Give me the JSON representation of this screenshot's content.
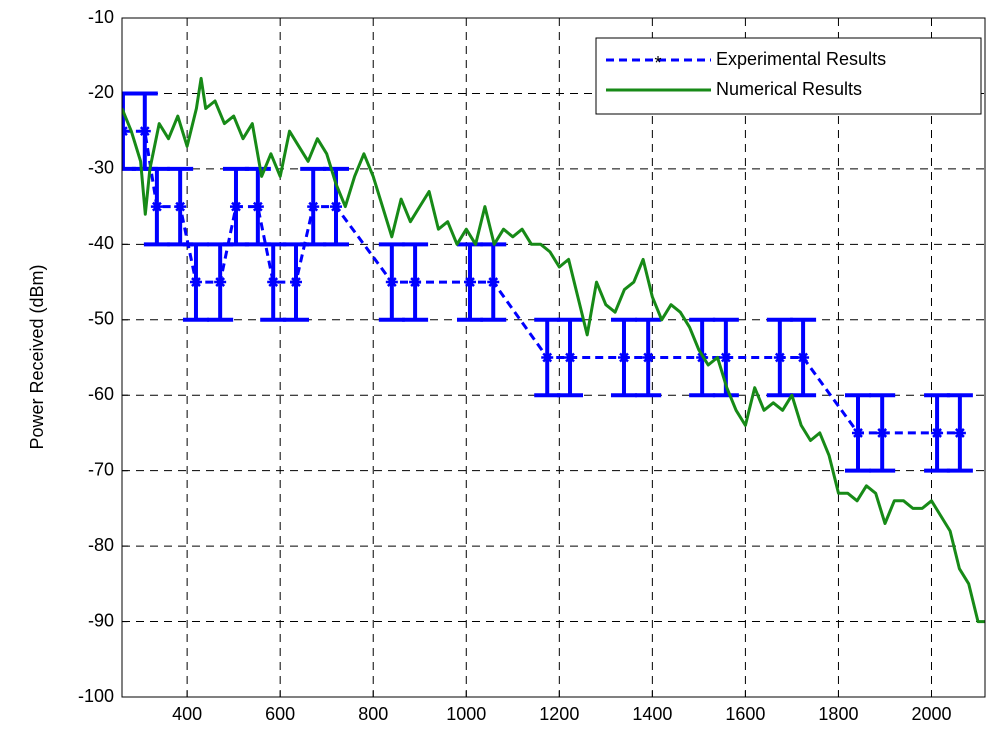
{
  "chart_data": {
    "type": "line",
    "y_label": "Power Received (dBm)",
    "xlim": [
      260,
      2115
    ],
    "xticks": [
      400,
      600,
      800,
      1000,
      1200,
      1400,
      1600,
      1800,
      2000
    ],
    "ylim": [
      -100,
      -10
    ],
    "yticks": [
      -100,
      -90,
      -80,
      -70,
      -60,
      -50,
      -40,
      -30,
      -20,
      -10
    ],
    "grid": true,
    "legend": "upper right",
    "series": [
      {
        "name": "Experimental Results",
        "color": "#0000ff",
        "style": "dashed",
        "marker": "*",
        "x": [
          262,
          309,
          335,
          385,
          419,
          471,
          505,
          552,
          585,
          634,
          671,
          720,
          840,
          890,
          1008,
          1058,
          1174,
          1223,
          1339,
          1391,
          1507,
          1558,
          1674,
          1724,
          1842,
          1894,
          2012,
          2061
        ],
        "values": [
          -25,
          -25,
          -35,
          -35,
          -45,
          -45,
          -35,
          -35,
          -45,
          -45,
          -35,
          -35,
          -45,
          -45,
          -45,
          -45,
          -55,
          -55,
          -55,
          -55,
          -55,
          -55,
          -55,
          -55,
          -65,
          -65,
          -65,
          -65
        ],
        "errors": [
          5,
          5,
          5,
          5,
          5,
          5,
          5,
          5,
          5,
          5,
          5,
          5,
          5,
          5,
          5,
          5,
          5,
          5,
          5,
          5,
          5,
          5,
          5,
          5,
          5,
          5,
          5,
          5
        ]
      },
      {
        "name": "Numerical Results",
        "color": "#178a17",
        "style": "solid",
        "x": [
          260,
          280,
          300,
          310,
          320,
          340,
          360,
          380,
          400,
          420,
          430,
          440,
          460,
          480,
          500,
          520,
          540,
          560,
          580,
          600,
          620,
          640,
          660,
          680,
          700,
          720,
          740,
          760,
          780,
          800,
          820,
          840,
          860,
          880,
          900,
          920,
          940,
          960,
          980,
          1000,
          1020,
          1040,
          1060,
          1080,
          1100,
          1120,
          1140,
          1160,
          1180,
          1200,
          1220,
          1240,
          1260,
          1280,
          1300,
          1320,
          1340,
          1360,
          1380,
          1400,
          1420,
          1440,
          1460,
          1480,
          1500,
          1520,
          1540,
          1560,
          1580,
          1600,
          1620,
          1640,
          1660,
          1680,
          1700,
          1720,
          1740,
          1760,
          1780,
          1800,
          1820,
          1840,
          1860,
          1880,
          1900,
          1920,
          1940,
          1960,
          1980,
          2000,
          2020,
          2040,
          2060,
          2080,
          2100,
          2115
        ],
        "values": [
          -22,
          -25,
          -29,
          -36,
          -30,
          -24,
          -26,
          -23,
          -27,
          -22,
          -18,
          -22,
          -21,
          -24,
          -23,
          -26,
          -24,
          -31,
          -28,
          -31,
          -25,
          -27,
          -29,
          -26,
          -28,
          -32,
          -35,
          -31,
          -28,
          -31,
          -35,
          -39,
          -34,
          -37,
          -35,
          -33,
          -38,
          -37,
          -40,
          -38,
          -40,
          -35,
          -40,
          -38,
          -39,
          -38,
          -40,
          -40,
          -41,
          -43,
          -42,
          -47,
          -52,
          -45,
          -48,
          -49,
          -46,
          -45,
          -42,
          -47,
          -50,
          -48,
          -49,
          -51,
          -54,
          -56,
          -55,
          -59,
          -62,
          -64,
          -59,
          -62,
          -61,
          -62,
          -60,
          -64,
          -66,
          -65,
          -68,
          -73,
          -73,
          -74,
          -72,
          -73,
          -77,
          -74,
          -74,
          -75,
          -75,
          -74,
          -76,
          -78,
          -83,
          -85,
          -90,
          -90
        ]
      }
    ]
  }
}
